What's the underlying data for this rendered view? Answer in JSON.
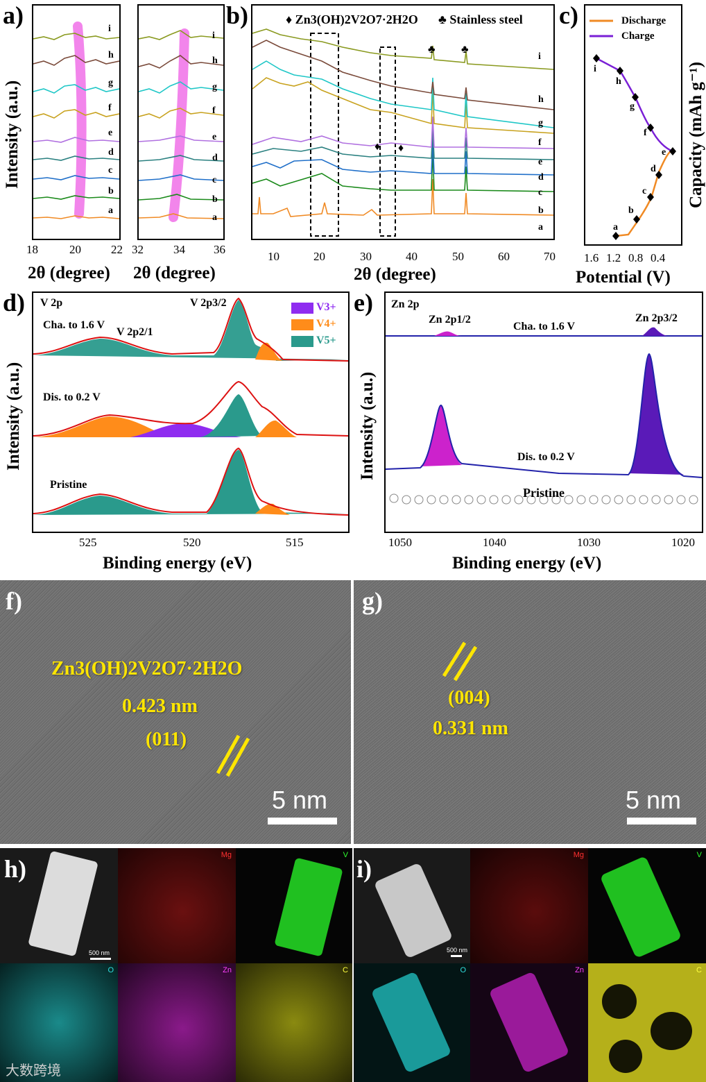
{
  "panels": {
    "a": {
      "label": "a)",
      "xtitle1": "2θ (degree)",
      "xtitle2": "2θ (degree)",
      "ytitle": "Intensity (a.u.)",
      "ticks1": [
        "18",
        "20",
        "22"
      ],
      "ticks2": [
        "32",
        "34",
        "36"
      ],
      "curve_labels": [
        "i",
        "h",
        "g",
        "f",
        "e",
        "d",
        "c",
        "b",
        "a"
      ]
    },
    "b": {
      "label": "b)",
      "legend": "♦ Zn3(OH)2V2O7·2H2O",
      "legend2": "♣ Stainless steel",
      "xtitle": "2θ (degree)",
      "ticks": [
        "10",
        "20",
        "30",
        "40",
        "50",
        "60",
        "70"
      ],
      "curve_labels": [
        "i",
        "h",
        "g",
        "f",
        "e",
        "d",
        "c",
        "b",
        "a"
      ]
    },
    "c": {
      "label": "c)",
      "legend_discharge": "Discharge",
      "legend_charge": "Charge",
      "xtitle": "Potential (V)",
      "ytitle": "Capacity (mAh g⁻¹)",
      "ticks": [
        "1.6",
        "1.2",
        "0.8",
        "0.4"
      ],
      "point_labels": [
        "a",
        "b",
        "c",
        "d",
        "e",
        "f",
        "g",
        "h",
        "i"
      ]
    },
    "d": {
      "label": "d)",
      "title": "V 2p",
      "peak_main": "V 2p3/2",
      "peak_minor": "V 2p2/1",
      "states": [
        "Cha. to 1.6 V",
        "Dis. to 0.2 V",
        "Pristine"
      ],
      "legend": [
        "V3+",
        "V4+",
        "V5+"
      ],
      "xtitle": "Binding energy (eV)",
      "ytitle": "Intensity (a.u.)",
      "ticks": [
        "525",
        "520",
        "515"
      ]
    },
    "e": {
      "label": "e)",
      "title": "Zn 2p",
      "peak1": "Zn 2p1/2",
      "peak2": "Zn 2p3/2",
      "states": [
        "Cha. to 1.6 V",
        "Dis. to 0.2 V",
        "Pristine"
      ],
      "xtitle": "Binding energy (eV)",
      "ytitle": "Intensity (a.u.)",
      "ticks": [
        "1050",
        "1040",
        "1030",
        "1020"
      ]
    },
    "f": {
      "label": "f)",
      "compound": "Zn3(OH)2V2O7·2H2O",
      "spacing": "0.423 nm",
      "plane": "(011)",
      "scale": "5 nm"
    },
    "g": {
      "label": "g)",
      "plane": "(004)",
      "spacing": "0.331 nm",
      "scale": "5 nm"
    },
    "h": {
      "label": "h)",
      "scale": "500 nm",
      "maps": [
        "Mg",
        "V",
        "O",
        "Zn",
        "C"
      ]
    },
    "i": {
      "label": "i)",
      "scale": "500 nm",
      "maps": [
        "Mg",
        "V",
        "O",
        "Zn",
        "C"
      ]
    }
  },
  "watermark": "大数跨境",
  "colors": {
    "discharge": "#f08a24",
    "charge": "#7a1fd6",
    "v3": "#8f2cf0",
    "v4": "#ff8c1a",
    "v5": "#2a9a8c",
    "zn": "#cc22cc",
    "zn_dark": "#5a1ab8",
    "yellow": "#ffe600"
  }
}
